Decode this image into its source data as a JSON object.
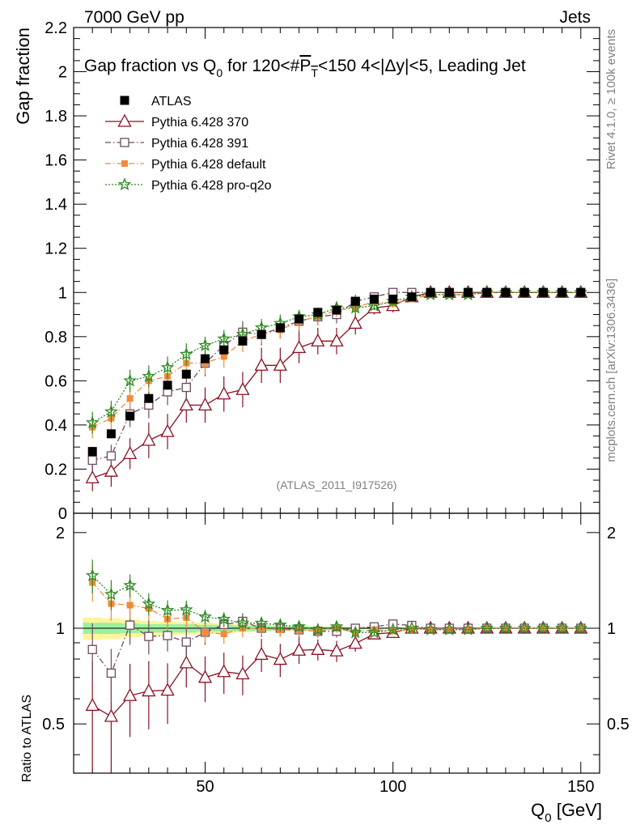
{
  "header": {
    "left": "7000 GeV pp",
    "right": "Jets"
  },
  "title": {
    "prefix": "Gap fraction vs Q",
    "q_sub": "0",
    "mid": " for 120<#",
    "p": "P",
    "t_sub": "T",
    "suffix": "<150  4<|Δy|<5, Leading Jet"
  },
  "side_labels": {
    "rivet": "Rivet 4.1.0, ≥ 100k events",
    "mcplots": "mcplots.cern.ch [arXiv:1306.3436]"
  },
  "watermark": "(ATLAS_2011_I917526)",
  "axes": {
    "ylabel_main": "Gap fraction",
    "ylabel_ratio": "Ratio to ATLAS",
    "xlabel_base": "Q",
    "xlabel_sub": "0",
    "xlabel_unit": " [GeV]"
  },
  "colors": {
    "atlas": "#000000",
    "p370": "#8b1020",
    "p391": "#6e4a5e",
    "pdefault": "#f28a3a",
    "pq2o": "#2a8a1e",
    "band_inner": "#9ef0a0",
    "band_outer": "#fff49a"
  },
  "chart_data": {
    "type": "scatter",
    "x_range": [
      15,
      155
    ],
    "main": {
      "ylim": [
        0,
        2.2
      ],
      "yticks": [
        0,
        0.2,
        0.4,
        0.6,
        0.8,
        1,
        1.2,
        1.4,
        1.6,
        1.8,
        2,
        2.2
      ],
      "ytick_labels": [
        "0",
        "0.2",
        "0.4",
        "0.6",
        "0.8",
        "1",
        "1.2",
        "1.4",
        "1.6",
        "1.8",
        "2",
        "2.2"
      ]
    },
    "ratio": {
      "ylim": [
        0.35,
        2.3
      ],
      "log": true,
      "yticks": [
        0.5,
        1,
        2
      ],
      "ytick_labels": [
        "0.5",
        "1",
        "2"
      ]
    },
    "xticks": [
      50,
      100,
      150
    ],
    "xtick_labels": [
      "50",
      "100",
      "150"
    ],
    "x": [
      20,
      25,
      30,
      35,
      40,
      45,
      50,
      55,
      60,
      65,
      70,
      75,
      80,
      85,
      90,
      95,
      100,
      105,
      110,
      115,
      120,
      125,
      130,
      135,
      140,
      145,
      150
    ],
    "data_band_inner": [
      0.04,
      0.04,
      0.035,
      0.03,
      0.03,
      0.03,
      0.025,
      0.025,
      0.02,
      0.02,
      0.015,
      0.015,
      0.012,
      0.01,
      0.008,
      0.005,
      0.004,
      0.003,
      0.002,
      0.002,
      0.001,
      0.001,
      0.001,
      0.001,
      0.001,
      0.001,
      0.001
    ],
    "data_band_outer": [
      0.08,
      0.075,
      0.065,
      0.055,
      0.05,
      0.045,
      0.04,
      0.035,
      0.03,
      0.025,
      0.02,
      0.02,
      0.015,
      0.012,
      0.01,
      0.006,
      0.005,
      0.004,
      0.003,
      0.002,
      0.002,
      0.001,
      0.001,
      0.001,
      0.001,
      0.001,
      0.001
    ],
    "series": [
      {
        "name": "ATLAS",
        "key": "atlas",
        "marker": "filled-square",
        "line": "none",
        "values": [
          0.28,
          0.36,
          0.44,
          0.52,
          0.58,
          0.63,
          0.7,
          0.74,
          0.78,
          0.81,
          0.84,
          0.88,
          0.91,
          0.92,
          0.96,
          0.97,
          0.97,
          0.98,
          1.0,
          1.0,
          1.0,
          1.0,
          1.0,
          1.0,
          1.0,
          1.0,
          1.0
        ],
        "errors": [
          0.02,
          0.02,
          0.02,
          0.02,
          0.02,
          0.02,
          0.02,
          0.02,
          0.02,
          0.02,
          0.02,
          0.02,
          0.02,
          0.02,
          0.02,
          0.01,
          0.01,
          0.01,
          0.005,
          0.005,
          0.005,
          0.005,
          0.005,
          0.005,
          0.005,
          0.005,
          0.005
        ]
      },
      {
        "name": "Pythia 6.428 370",
        "key": "p370",
        "marker": "open-triangle",
        "line": "solid",
        "values": [
          0.16,
          0.19,
          0.27,
          0.33,
          0.37,
          0.49,
          0.49,
          0.54,
          0.56,
          0.67,
          0.67,
          0.75,
          0.78,
          0.78,
          0.86,
          0.93,
          0.94,
          0.98,
          1.0,
          1.0,
          1.0,
          1.0,
          1.0,
          1.0,
          1.0,
          1.0,
          1.0
        ],
        "errors": [
          0.06,
          0.07,
          0.07,
          0.08,
          0.08,
          0.08,
          0.08,
          0.08,
          0.08,
          0.08,
          0.08,
          0.07,
          0.06,
          0.06,
          0.05,
          0.03,
          0.03,
          0.02,
          0.01,
          0.01,
          0.005,
          0.005,
          0.005,
          0.005,
          0.005,
          0.005,
          0.005
        ]
      },
      {
        "name": "Pythia 6.428 391",
        "key": "p391",
        "marker": "open-square",
        "line": "dashdot",
        "values": [
          0.24,
          0.26,
          0.45,
          0.49,
          0.55,
          0.57,
          0.68,
          0.76,
          0.82,
          0.81,
          0.84,
          0.87,
          0.89,
          0.9,
          0.96,
          0.98,
          1.0,
          1.0,
          1.0,
          1.0,
          1.0,
          1.0,
          1.0,
          1.0,
          1.0,
          1.0,
          1.0
        ],
        "errors": [
          0.05,
          0.05,
          0.06,
          0.06,
          0.06,
          0.06,
          0.06,
          0.06,
          0.05,
          0.05,
          0.05,
          0.05,
          0.04,
          0.04,
          0.03,
          0.02,
          0.01,
          0.01,
          0.005,
          0.005,
          0.005,
          0.005,
          0.005,
          0.005,
          0.005,
          0.005,
          0.005
        ]
      },
      {
        "name": "Pythia 6.428 default",
        "key": "pdefault",
        "marker": "filled-small-square",
        "line": "dashdot",
        "values": [
          0.39,
          0.43,
          0.52,
          0.6,
          0.62,
          0.68,
          0.68,
          0.71,
          0.78,
          0.81,
          0.83,
          0.87,
          0.89,
          0.92,
          0.93,
          0.96,
          0.95,
          0.97,
          0.99,
          0.99,
          0.99,
          1.0,
          1.0,
          1.0,
          1.0,
          1.0,
          1.0
        ],
        "errors": [
          0.05,
          0.05,
          0.05,
          0.05,
          0.05,
          0.05,
          0.05,
          0.05,
          0.05,
          0.04,
          0.04,
          0.04,
          0.04,
          0.03,
          0.03,
          0.02,
          0.02,
          0.01,
          0.005,
          0.005,
          0.005,
          0.005,
          0.005,
          0.005,
          0.005,
          0.005,
          0.005
        ]
      },
      {
        "name": "Pythia 6.428 pro-q2o",
        "key": "pq2o",
        "marker": "star",
        "line": "dotted",
        "values": [
          0.41,
          0.46,
          0.6,
          0.62,
          0.66,
          0.72,
          0.76,
          0.79,
          0.81,
          0.84,
          0.86,
          0.89,
          0.9,
          0.93,
          0.93,
          0.94,
          0.96,
          0.98,
          0.99,
          0.99,
          0.99,
          1.0,
          1.0,
          1.0,
          1.0,
          1.0,
          1.0
        ],
        "errors": [
          0.05,
          0.05,
          0.05,
          0.05,
          0.05,
          0.05,
          0.04,
          0.04,
          0.04,
          0.04,
          0.04,
          0.03,
          0.03,
          0.03,
          0.03,
          0.02,
          0.02,
          0.01,
          0.005,
          0.005,
          0.005,
          0.005,
          0.005,
          0.005,
          0.005,
          0.005,
          0.005
        ]
      }
    ]
  }
}
